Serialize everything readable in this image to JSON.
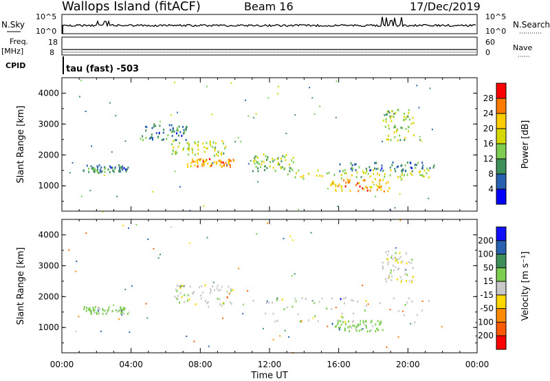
{
  "header": {
    "station": "Wallops Island (fitACF)",
    "beam": "Beam 16",
    "date": "17/Dec/2019"
  },
  "time_strip": {
    "nsky_label": "N.Sky",
    "nsearch_label": "N.Search",
    "left_ticks": [
      "10^5",
      "10^0"
    ],
    "right_ticks": [
      "10^5",
      "10^0"
    ],
    "freq_label": "Freq.",
    "freq_unit": "[MHz]",
    "freq_ticks": [
      "18",
      "8"
    ],
    "nave_label": "Nave",
    "nave_ticks": [
      "60",
      "0"
    ],
    "cpid_label": "CPID",
    "cpid_value": "tau (fast) -503"
  },
  "colorbars": {
    "power": {
      "label": "Power [dB]",
      "ticks": [
        "28",
        "24",
        "20",
        "16",
        "12",
        "8",
        "4"
      ],
      "colors": [
        "#ff0000",
        "#ff7a00",
        "#ffcc00",
        "#d7d700",
        "#7ccd50",
        "#3e8e5a",
        "#2860b0",
        "#0000ff"
      ]
    },
    "velocity": {
      "label": "Velocity [m s⁻¹]",
      "ticks": [
        "200",
        "100",
        "50",
        "15",
        "-15",
        "-50",
        "-100",
        "-200"
      ],
      "colors": [
        "#1010ff",
        "#2860b0",
        "#3e8e5a",
        "#7ccd50",
        "#c8c8c8",
        "#ffd700",
        "#ff8c00",
        "#ff5a00",
        "#ff0000"
      ]
    }
  },
  "axes": {
    "x_label": "Time UT",
    "x_ticks": [
      "00:00",
      "04:00",
      "08:00",
      "12:00",
      "16:00",
      "20:00",
      "00:00"
    ],
    "y_label": "Slant Range [km]",
    "y_ticks": [
      "4000",
      "3000",
      "2000",
      "1000"
    ]
  },
  "chart_data": [
    {
      "type": "heatmap",
      "title": "Power",
      "xlabel": "Time UT",
      "ylabel": "Slant Range [km]",
      "x_unit": "hours UT",
      "xlim": [
        0,
        24
      ],
      "ylim": [
        180,
        4500
      ],
      "colorbar": "Power [dB]",
      "clim": [
        0,
        30
      ],
      "scatter_regions": [
        {
          "t": [
            1.2,
            3.8
          ],
          "r": [
            1450,
            1700
          ],
          "value_db": 8
        },
        {
          "t": [
            4.5,
            7.2
          ],
          "r": [
            2500,
            3050
          ],
          "value_db": 8
        },
        {
          "t": [
            6.3,
            9.5
          ],
          "r": [
            2000,
            2500
          ],
          "value_db": 16
        },
        {
          "t": [
            7.2,
            9.9
          ],
          "r": [
            1650,
            1900
          ],
          "value_db": 22
        },
        {
          "t": [
            11.0,
            13.5
          ],
          "r": [
            1500,
            2050
          ],
          "value_db": 14
        },
        {
          "t": [
            13.0,
            21.4
          ],
          "r": [
            1250,
            1550
          ],
          "value_db": 16
        },
        {
          "t": [
            15.5,
            19.0
          ],
          "r": [
            850,
            1250
          ],
          "value_db": 22
        },
        {
          "t": [
            18.5,
            20.3
          ],
          "r": [
            2500,
            3500
          ],
          "value_db": 14
        },
        {
          "t": [
            16.0,
            21.5
          ],
          "r": [
            1500,
            1800
          ],
          "value_db": 8
        }
      ]
    },
    {
      "type": "heatmap",
      "title": "Velocity",
      "xlabel": "Time UT",
      "ylabel": "Slant Range [km]",
      "x_unit": "hours UT",
      "xlim": [
        0,
        24
      ],
      "ylim": [
        180,
        4500
      ],
      "colorbar": "Velocity [m s⁻¹]",
      "clim": [
        -250,
        250
      ],
      "scatter_regions": [
        {
          "t": [
            1.2,
            3.8
          ],
          "r": [
            1450,
            1700
          ],
          "value_ms": 30
        },
        {
          "t": [
            6.5,
            9.9
          ],
          "r": [
            1700,
            2400
          ],
          "value_ms": 0
        },
        {
          "t": [
            11.0,
            21.4
          ],
          "r": [
            1150,
            2000
          ],
          "value_ms": 0
        },
        {
          "t": [
            15.5,
            18.5
          ],
          "r": [
            900,
            1250
          ],
          "value_ms": 30
        },
        {
          "t": [
            18.5,
            20.3
          ],
          "r": [
            2500,
            3500
          ],
          "value_ms": 0
        }
      ]
    }
  ]
}
